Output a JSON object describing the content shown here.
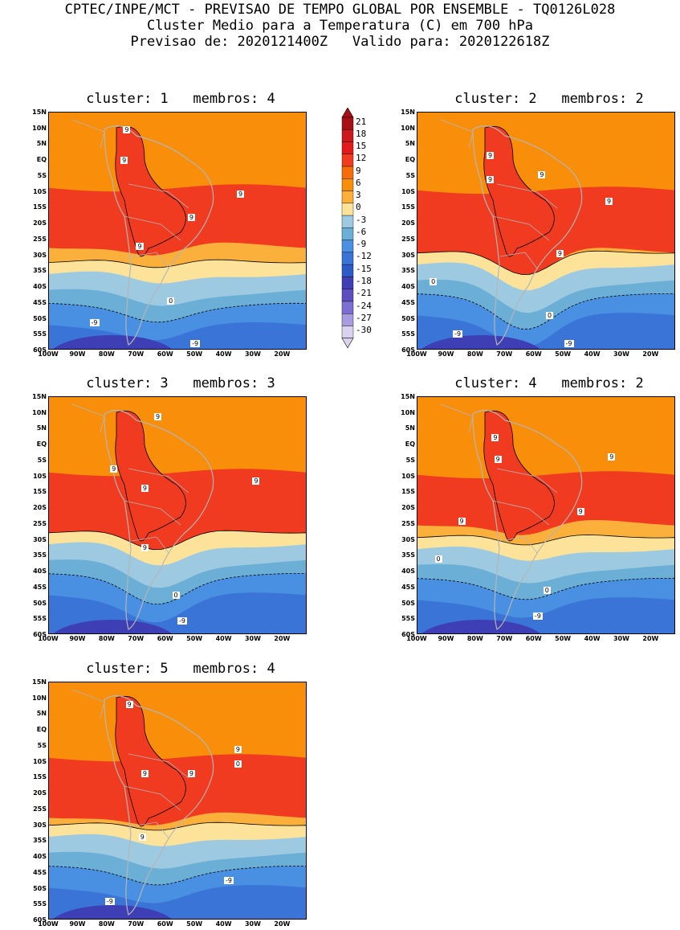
{
  "header": {
    "line1": "CPTEC/INPE/MCT - PREVISAO DE TEMPO GLOBAL POR ENSEMBLE - TQ0126L028",
    "line2": "Cluster Medio para a Temperatura (C) em 700 hPa",
    "line3": "Previsao de: 2020121400Z   Valido para: 2020122618Z"
  },
  "lat_ticks": [
    "15N",
    "10N",
    "5N",
    "EQ",
    "5S",
    "10S",
    "15S",
    "20S",
    "25S",
    "30S",
    "35S",
    "40S",
    "45S",
    "50S",
    "55S",
    "60S"
  ],
  "lon_ticks": [
    "100W",
    "90W",
    "80W",
    "70W",
    "60W",
    "50W",
    "40W",
    "30W",
    "20W"
  ],
  "panels": [
    {
      "title": "cluster: 1   membros: 4",
      "contour_labels": [
        "9",
        "9",
        "9",
        "9",
        "9",
        "0",
        "-9",
        "-9"
      ]
    },
    {
      "title": "cluster: 2   membros: 2",
      "contour_labels": [
        "9",
        "9",
        "9",
        "9",
        "9",
        "0",
        "0",
        "-9",
        "-9"
      ]
    },
    {
      "title": "cluster: 3   membros: 3",
      "contour_labels": [
        "9",
        "9",
        "9",
        "9",
        "9",
        "0",
        "-9"
      ]
    },
    {
      "title": "cluster: 4   membros: 2",
      "contour_labels": [
        "9",
        "9",
        "9",
        "9",
        "9",
        "0",
        "0",
        "-9"
      ]
    },
    {
      "title": "cluster: 5   membros: 4",
      "contour_labels": [
        "9",
        "9",
        "9",
        "9",
        "9",
        "0",
        "-9",
        "-9"
      ]
    }
  ],
  "colorbar": {
    "labels": [
      "21",
      "18",
      "15",
      "12",
      "9",
      "6",
      "3",
      "0",
      "-3",
      "-6",
      "-9",
      "-12",
      "-15",
      "-18",
      "-21",
      "-24",
      "-27",
      "-30"
    ],
    "colors": [
      "#a50f15",
      "#cb181d",
      "#e31a1c",
      "#f03b20",
      "#f46d0a",
      "#f98e0b",
      "#fbb03b",
      "#fde39a",
      "#9ecae1",
      "#6baed6",
      "#4a90e2",
      "#3a74d6",
      "#2c5bc7",
      "#3f3fb5",
      "#5d4ec0",
      "#7c6fd1",
      "#a89be0",
      "#d9d2ef"
    ]
  },
  "chart_data": {
    "type": "map",
    "variable": "Temperatura (C) em 700 hPa",
    "contour_levels": [
      -30,
      -27,
      -24,
      -21,
      -18,
      -15,
      -12,
      -9,
      -6,
      -3,
      0,
      3,
      6,
      9,
      12,
      15,
      18,
      21
    ],
    "lat_range": [
      "60S",
      "15N"
    ],
    "lon_range": [
      "100W",
      "20W"
    ]
  }
}
